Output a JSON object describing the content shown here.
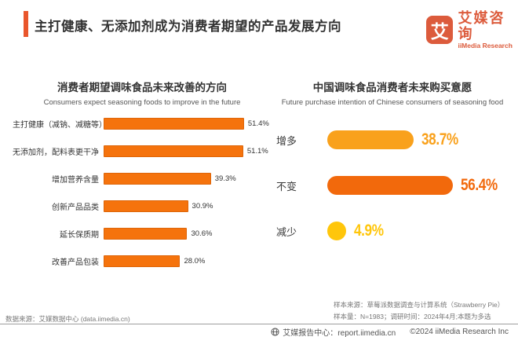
{
  "header": {
    "title": "主打健康、无添加剂成为消费者期望的产品发展方向",
    "accent_color": "#E9562C",
    "logo": {
      "mark": "艾",
      "name_cn": "艾媒咨询",
      "name_en": "iiMedia Research",
      "brand_color": "#DC5B3C"
    }
  },
  "chart_data": [
    {
      "type": "bar",
      "orientation": "horizontal",
      "title": "消费者期望调味食品未来改善的方向",
      "subtitle": "Consumers expect seasoning foods to improve in the future",
      "categories": [
        "主打健康（减钠、减糖等）",
        "无添加剂，配料表更干净",
        "增加营养含量",
        "创新产品品类",
        "延长保质期",
        "改善产品包装"
      ],
      "values": [
        51.4,
        51.1,
        39.3,
        30.9,
        30.6,
        28.0
      ],
      "value_suffix": "%",
      "xlim": [
        0,
        55
      ],
      "grid": false,
      "bar_color": "#F5730D",
      "bar_border_color": "#DD6509"
    },
    {
      "type": "bar",
      "orientation": "horizontal-pill",
      "title": "中国调味食品消费者未来购买意愿",
      "subtitle": "Future purchase intention of Chinese consumers of seasoning food",
      "categories": [
        "增多",
        "不变",
        "减少"
      ],
      "values": [
        38.7,
        56.4,
        4.9
      ],
      "value_suffix": "%",
      "xlim": [
        0,
        60
      ],
      "grid": false,
      "colors": [
        "#F9A11C",
        "#F2690C",
        "#FFC60B"
      ]
    }
  ],
  "footnotes": {
    "data_source": "数据来源：艾媒数据中心 (data.iimedia.cn)",
    "sample_source": "样本来源：草莓派数据调查与计算系统（Strawberry Pie）",
    "sample_info": "样本量：N=1983；调研时间：2024年4月;本题为多选"
  },
  "footer": {
    "report_center": "艾媒报告中心：report.iimedia.cn",
    "copyright": "©2024  iiMedia Research Inc"
  }
}
